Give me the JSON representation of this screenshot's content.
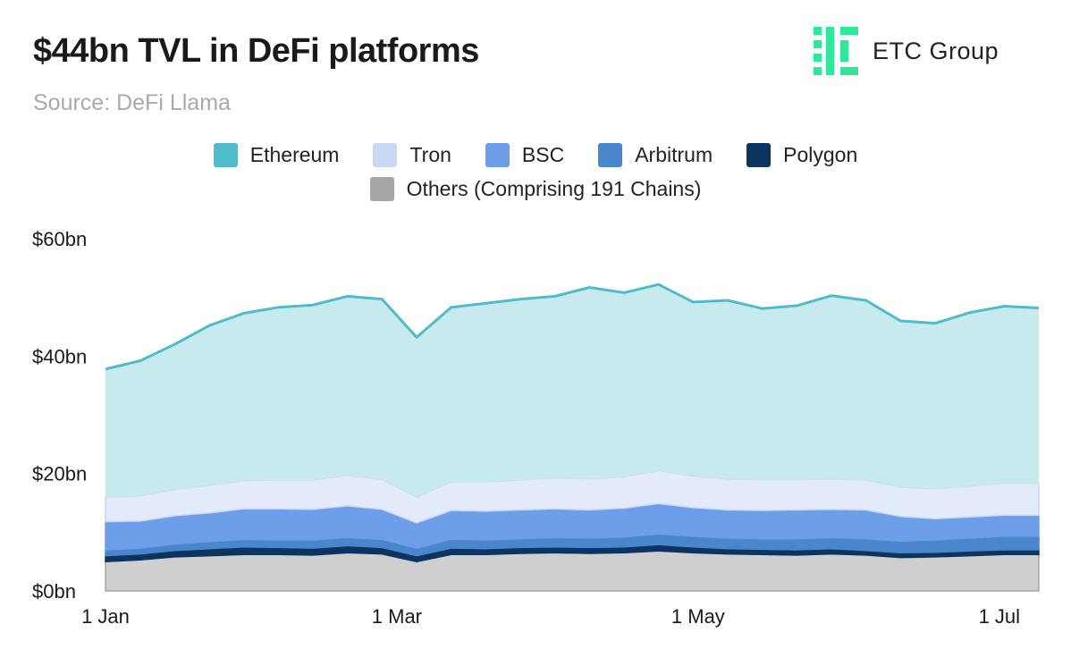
{
  "title": "$44bn TVL in DeFi platforms",
  "subtitle": "Source: DeFi Llama",
  "logo": {
    "text": "ETC Group",
    "icon": "etc-group-logo-icon",
    "color": "#2ee89a"
  },
  "chart_data": {
    "type": "area",
    "stacked": true,
    "title": "$44bn TVL in DeFi platforms",
    "ylabel": "",
    "xlabel": "",
    "ylim": [
      0,
      60
    ],
    "y_ticks": [
      0,
      20,
      40,
      60
    ],
    "y_tick_labels": [
      "$0bn",
      "$20bn",
      "$40bn",
      "$60bn"
    ],
    "x_tick_positions": [
      "01-01",
      "03-01",
      "05-01",
      "07-01"
    ],
    "x_tick_labels": [
      "1 Jan",
      "1 Mar",
      "1 May",
      "1 Jul"
    ],
    "x": [
      "01-01",
      "01-08",
      "01-15",
      "01-22",
      "01-29",
      "02-05",
      "02-12",
      "02-19",
      "02-26",
      "03-05",
      "03-12",
      "03-19",
      "03-26",
      "04-02",
      "04-09",
      "04-16",
      "04-23",
      "04-30",
      "05-07",
      "05-14",
      "05-21",
      "05-28",
      "06-04",
      "06-11",
      "06-18",
      "06-25",
      "07-02",
      "07-09"
    ],
    "grid": false,
    "legend_position": "top-center",
    "series": [
      {
        "name": "Others (Comprising 191 Chains)",
        "color": "#a6a6a6",
        "values": [
          5,
          5.3,
          5.8,
          6,
          6.2,
          6.2,
          6.1,
          6.5,
          6.3,
          5,
          6.2,
          6.2,
          6.4,
          6.5,
          6.4,
          6.5,
          6.8,
          6.5,
          6.3,
          6.2,
          6.1,
          6.3,
          6.1,
          5.7,
          5.8,
          6,
          6.2,
          6.2
        ]
      },
      {
        "name": "Polygon",
        "color": "#0b3460",
        "values": [
          1,
          1,
          1.1,
          1.2,
          1.3,
          1.2,
          1.2,
          1.2,
          1.1,
          1,
          1.1,
          1,
          1,
          1,
          1,
          1,
          1.1,
          1,
          0.9,
          0.9,
          0.9,
          0.9,
          0.8,
          0.8,
          0.8,
          0.8,
          0.8,
          0.8
        ]
      },
      {
        "name": "Arbitrum",
        "color": "#4a86cc",
        "values": [
          1,
          1,
          1.1,
          1.2,
          1.3,
          1.3,
          1.4,
          1.4,
          1.4,
          1.3,
          1.5,
          1.5,
          1.5,
          1.6,
          1.6,
          1.7,
          1.8,
          1.8,
          1.8,
          1.8,
          1.9,
          1.9,
          2,
          2,
          2.1,
          2.2,
          2.3,
          2.3
        ]
      },
      {
        "name": "BSC",
        "color": "#6d9eea",
        "values": [
          4.8,
          4.6,
          4.8,
          4.9,
          5.2,
          5.3,
          5.2,
          5.4,
          5.1,
          4.3,
          4.9,
          4.9,
          4.9,
          4.9,
          4.8,
          4.9,
          5.2,
          4.9,
          4.8,
          4.8,
          4.9,
          4.8,
          4.9,
          4.2,
          3.6,
          3.6,
          3.6,
          3.6
        ]
      },
      {
        "name": "Tron",
        "color": "#c9d8f5",
        "values": [
          4.2,
          4.3,
          4.5,
          4.7,
          4.8,
          4.9,
          5,
          5.2,
          5.1,
          4.4,
          4.9,
          5,
          5.1,
          5.3,
          5.3,
          5.4,
          5.6,
          5.4,
          5.3,
          5.3,
          5.2,
          5.2,
          5.1,
          5,
          5.1,
          5.3,
          5.5,
          5.5
        ]
      },
      {
        "name": "Ethereum",
        "color": "#4fbccb",
        "values": [
          21.8,
          23,
          24.7,
          27.2,
          28.5,
          29.4,
          29.8,
          30.5,
          30.7,
          27.2,
          29.7,
          30.4,
          30.8,
          30.9,
          32.6,
          31.3,
          31.7,
          29.6,
          30.4,
          29.1,
          29.6,
          31.2,
          30.6,
          28.3,
          28.2,
          29.5,
          30.1,
          29.8
        ]
      }
    ],
    "totals": [
      37.8,
      39.2,
      42,
      45.2,
      47.3,
      48.3,
      48.7,
      50.2,
      49.7,
      43.2,
      48.3,
      49,
      49.7,
      50.2,
      51.7,
      50.8,
      52.2,
      49.2,
      49.5,
      48.1,
      48.6,
      50.3,
      49.5,
      46,
      45.6,
      47.4,
      48.5,
      48.2
    ]
  },
  "legend": {
    "row1": [
      {
        "label": "Ethereum",
        "color": "#4fbccb"
      },
      {
        "label": "Tron",
        "color": "#c9d8f5"
      },
      {
        "label": "BSC",
        "color": "#6d9eea"
      },
      {
        "label": "Arbitrum",
        "color": "#4a86cc"
      },
      {
        "label": "Polygon",
        "color": "#0b3460"
      }
    ],
    "row2": [
      {
        "label": "Others (Comprising 191 Chains)",
        "color": "#a6a6a6"
      }
    ]
  }
}
